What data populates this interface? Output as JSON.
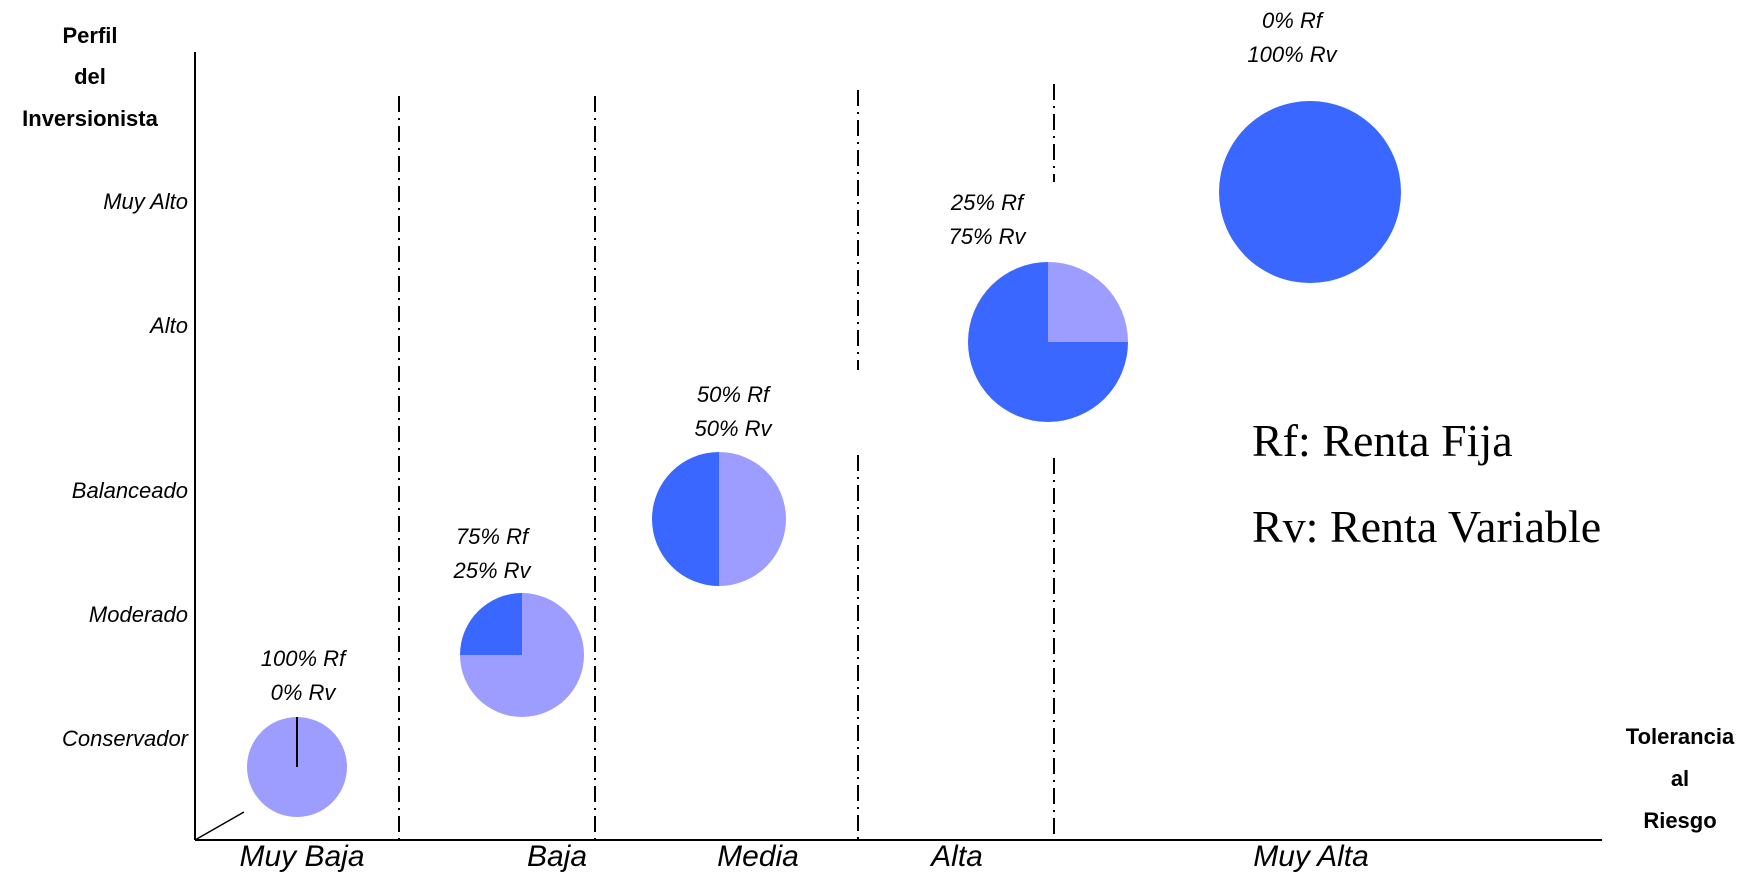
{
  "chart_data": {
    "type": "pie",
    "y_axis_title": [
      "Perfil",
      "del",
      "Inversionista"
    ],
    "x_axis_title": [
      "Tolerancia",
      "al",
      "Riesgo"
    ],
    "y_categories": [
      "Conservador",
      "Moderado",
      "Balanceado",
      "Alto",
      "Muy Alto"
    ],
    "x_categories": [
      "Muy Baja",
      "Baja",
      "Media",
      "Alta",
      "Muy Alta"
    ],
    "series_colors": {
      "Rf": "#9D9DFF",
      "Rv": "#3A67FF"
    },
    "pies": [
      {
        "x": "Muy Baja",
        "y": "Conservador",
        "rf_percent": 100,
        "rv_percent": 0,
        "label_rf": "100% Rf",
        "label_rv": "0% Rv"
      },
      {
        "x": "Baja",
        "y": "Moderado",
        "rf_percent": 75,
        "rv_percent": 25,
        "label_rf": "75% Rf",
        "label_rv": "25% Rv"
      },
      {
        "x": "Media",
        "y": "Balanceado",
        "rf_percent": 50,
        "rv_percent": 50,
        "label_rf": "50% Rf",
        "label_rv": "50% Rv"
      },
      {
        "x": "Alta",
        "y": "Alto",
        "rf_percent": 25,
        "rv_percent": 75,
        "label_rf": "25% Rf",
        "label_rv": "75% Rv"
      },
      {
        "x": "Muy Alta",
        "y": "Muy Alto",
        "rf_percent": 0,
        "rv_percent": 100,
        "label_rf": "0% Rf",
        "label_rv": "100% Rv"
      }
    ],
    "legend": [
      "Rf: Renta Fija",
      "Rv: Renta Variable"
    ]
  }
}
